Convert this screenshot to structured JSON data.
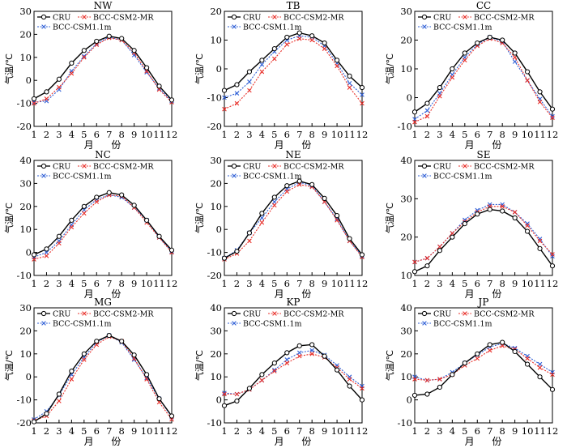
{
  "figure": {
    "xlabel": "月 份",
    "ylabel": "气温/℃",
    "legend": [
      "CRU",
      "BCC-CSM2-MR",
      "BCC-CSM1.1m"
    ],
    "colors": {
      "CRU": "#000000",
      "BCC-CSM2-MR": "#e8302a",
      "BCC-CSM1.1m": "#2f5fd6"
    }
  },
  "chart_data": [
    {
      "type": "line",
      "title": "NW",
      "ylim": [
        -20,
        30
      ],
      "yticks": [
        -20,
        -10,
        0,
        10,
        20,
        30
      ],
      "x": [
        1,
        2,
        3,
        4,
        5,
        6,
        7,
        8,
        9,
        10,
        11,
        12
      ],
      "series": [
        {
          "name": "CRU",
          "values": [
            -8,
            -5,
            0.5,
            7.5,
            13,
            17,
            19.2,
            18.2,
            13,
            5.5,
            -2.5,
            -8.5
          ]
        },
        {
          "name": "BCC-CSM2-MR",
          "values": [
            -10,
            -8,
            -3,
            3,
            10,
            15.5,
            18.5,
            17.5,
            12,
            4,
            -4,
            -9.5
          ]
        },
        {
          "name": "BCC-CSM1.1m",
          "values": [
            -9.5,
            -9,
            -4,
            4,
            10.5,
            16,
            18.8,
            17.5,
            11,
            3.5,
            -3.5,
            -9
          ]
        }
      ]
    },
    {
      "type": "line",
      "title": "TB",
      "ylim": [
        -20,
        20
      ],
      "yticks": [
        -20,
        -10,
        0,
        10,
        20
      ],
      "x": [
        1,
        2,
        3,
        4,
        5,
        6,
        7,
        8,
        9,
        10,
        11,
        12
      ],
      "series": [
        {
          "name": "CRU",
          "values": [
            -7.5,
            -5.5,
            -1,
            3,
            7,
            11,
            12.5,
            11.5,
            9,
            3,
            -2.5,
            -6.5
          ]
        },
        {
          "name": "BCC-CSM2-MR",
          "values": [
            -14,
            -12,
            -7.5,
            -1,
            3.5,
            8.5,
            10.5,
            10,
            7,
            1,
            -6.5,
            -12
          ]
        },
        {
          "name": "BCC-CSM1.1m",
          "values": [
            -10,
            -8.5,
            -4.5,
            1.5,
            6,
            10,
            11.5,
            11,
            8,
            2,
            -5,
            -9
          ]
        }
      ]
    },
    {
      "type": "line",
      "title": "CC",
      "ylim": [
        -10,
        30
      ],
      "yticks": [
        -10,
        0,
        10,
        20,
        30
      ],
      "x": [
        1,
        2,
        3,
        4,
        5,
        6,
        7,
        8,
        9,
        10,
        11,
        12
      ],
      "series": [
        {
          "name": "CRU",
          "values": [
            -5,
            -2,
            3.5,
            10,
            15.5,
            19,
            21,
            20,
            15.5,
            9,
            2,
            -4
          ]
        },
        {
          "name": "BCC-CSM2-MR",
          "values": [
            -8.5,
            -6.5,
            0.5,
            7,
            13,
            18,
            20.5,
            19,
            14,
            6,
            -1.5,
            -7
          ]
        },
        {
          "name": "BCC-CSM1.1m",
          "values": [
            -7.5,
            -4.5,
            1.5,
            8,
            14,
            18.5,
            21,
            19.5,
            12.5,
            6,
            -0.5,
            -6.5
          ]
        }
      ]
    },
    {
      "type": "line",
      "title": "NC",
      "ylim": [
        -10,
        40
      ],
      "yticks": [
        -10,
        0,
        10,
        20,
        30,
        40
      ],
      "x": [
        1,
        2,
        3,
        4,
        5,
        6,
        7,
        8,
        9,
        10,
        11,
        12
      ],
      "series": [
        {
          "name": "CRU",
          "values": [
            -1,
            1.5,
            7,
            14,
            20,
            24,
            26,
            25,
            20.5,
            14,
            7,
            1
          ]
        },
        {
          "name": "BCC-CSM2-MR",
          "values": [
            -3,
            -1.5,
            4,
            11,
            17,
            22,
            25,
            24.5,
            19.5,
            13,
            6.5,
            0
          ]
        },
        {
          "name": "BCC-CSM1.1m",
          "values": [
            -2,
            0,
            5,
            12,
            18.5,
            23,
            25,
            24,
            19.5,
            14,
            6.5,
            0.5
          ]
        }
      ]
    },
    {
      "type": "line",
      "title": "NE",
      "ylim": [
        -20,
        30
      ],
      "yticks": [
        -20,
        -10,
        0,
        10,
        20,
        30
      ],
      "x": [
        1,
        2,
        3,
        4,
        5,
        6,
        7,
        8,
        9,
        10,
        11,
        12
      ],
      "series": [
        {
          "name": "CRU",
          "values": [
            -12.5,
            -9.5,
            -1.5,
            7,
            14,
            19,
            21,
            19.5,
            13.5,
            6,
            -4,
            -11
          ]
        },
        {
          "name": "BCC-CSM2-MR",
          "values": [
            -13,
            -10.5,
            -5,
            3,
            10.5,
            16.5,
            19.5,
            18.5,
            12,
            4,
            -5,
            -12
          ]
        },
        {
          "name": "BCC-CSM1.1m",
          "values": [
            -12.5,
            -9,
            -1.5,
            5,
            12,
            17.5,
            20.5,
            19,
            12,
            4.5,
            -5,
            -11.5
          ]
        }
      ]
    },
    {
      "type": "line",
      "title": "SE",
      "ylim": [
        10,
        40
      ],
      "yticks": [
        10,
        20,
        30,
        40
      ],
      "x": [
        1,
        2,
        3,
        4,
        5,
        6,
        7,
        8,
        9,
        10,
        11,
        12
      ],
      "series": [
        {
          "name": "CRU",
          "values": [
            11,
            12.5,
            16.5,
            20,
            23.5,
            26,
            27.2,
            26.8,
            25,
            21.5,
            17,
            12.5
          ]
        },
        {
          "name": "BCC-CSM2-MR",
          "values": [
            13.5,
            14.5,
            17.5,
            21,
            24,
            26.5,
            28,
            28,
            26.5,
            23,
            19,
            15.5
          ]
        },
        {
          "name": "BCC-CSM1.1m",
          "values": [
            13.5,
            14.5,
            17.5,
            21,
            24.5,
            27,
            28.5,
            28.5,
            26.5,
            23.5,
            19.5,
            15
          ]
        }
      ]
    },
    {
      "type": "line",
      "title": "MG",
      "ylim": [
        -20,
        30
      ],
      "yticks": [
        -20,
        -10,
        0,
        10,
        20,
        30
      ],
      "x": [
        1,
        2,
        3,
        4,
        5,
        6,
        7,
        8,
        9,
        10,
        11,
        12
      ],
      "series": [
        {
          "name": "CRU",
          "values": [
            -19.5,
            -16,
            -7.5,
            2.5,
            10,
            15.5,
            18,
            15.5,
            9.5,
            1,
            -9.5,
            -17
          ]
        },
        {
          "name": "BCC-CSM2-MR",
          "values": [
            -19,
            -17,
            -10.5,
            -1,
            7.5,
            14,
            17.5,
            15.5,
            8,
            -1,
            -11,
            -18.5
          ]
        },
        {
          "name": "BCC-CSM1.1m",
          "values": [
            -18.5,
            -15,
            -8,
            1,
            8.5,
            15,
            18,
            15,
            7.5,
            -0.5,
            -9.5,
            -17.5
          ]
        }
      ]
    },
    {
      "type": "line",
      "title": "KP",
      "ylim": [
        -10,
        40
      ],
      "yticks": [
        -10,
        0,
        10,
        20,
        30,
        40
      ],
      "x": [
        1,
        2,
        3,
        4,
        5,
        6,
        7,
        8,
        9,
        10,
        11,
        12
      ],
      "series": [
        {
          "name": "CRU",
          "values": [
            -2.5,
            -0.5,
            5,
            11,
            16,
            20.5,
            23.5,
            24,
            19,
            13,
            6,
            0
          ]
        },
        {
          "name": "BCC-CSM2-MR",
          "values": [
            2.5,
            2.5,
            4.5,
            8.5,
            12.5,
            16,
            19,
            20,
            18.5,
            14,
            9,
            5
          ]
        },
        {
          "name": "BCC-CSM1.1m",
          "values": [
            3,
            2.5,
            4.5,
            8.5,
            13,
            17.5,
            20.5,
            21.5,
            19.5,
            15,
            10,
            6
          ]
        }
      ]
    },
    {
      "type": "line",
      "title": "JP",
      "ylim": [
        -10,
        40
      ],
      "yticks": [
        -10,
        0,
        10,
        20,
        30,
        40
      ],
      "x": [
        1,
        2,
        3,
        4,
        5,
        6,
        7,
        8,
        9,
        10,
        11,
        12
      ],
      "series": [
        {
          "name": "CRU",
          "values": [
            2,
            2.5,
            5.5,
            11,
            16,
            20,
            24,
            25,
            21,
            15.5,
            10,
            4.5
          ]
        },
        {
          "name": "BCC-CSM2-MR",
          "values": [
            9,
            8.5,
            9,
            11,
            15,
            18,
            21.5,
            23.5,
            22,
            18,
            14,
            11
          ]
        },
        {
          "name": "BCC-CSM1.1m",
          "values": [
            10,
            8.5,
            9,
            12,
            16,
            19.5,
            23,
            24.5,
            22.5,
            19,
            15.5,
            12
          ]
        }
      ]
    }
  ]
}
